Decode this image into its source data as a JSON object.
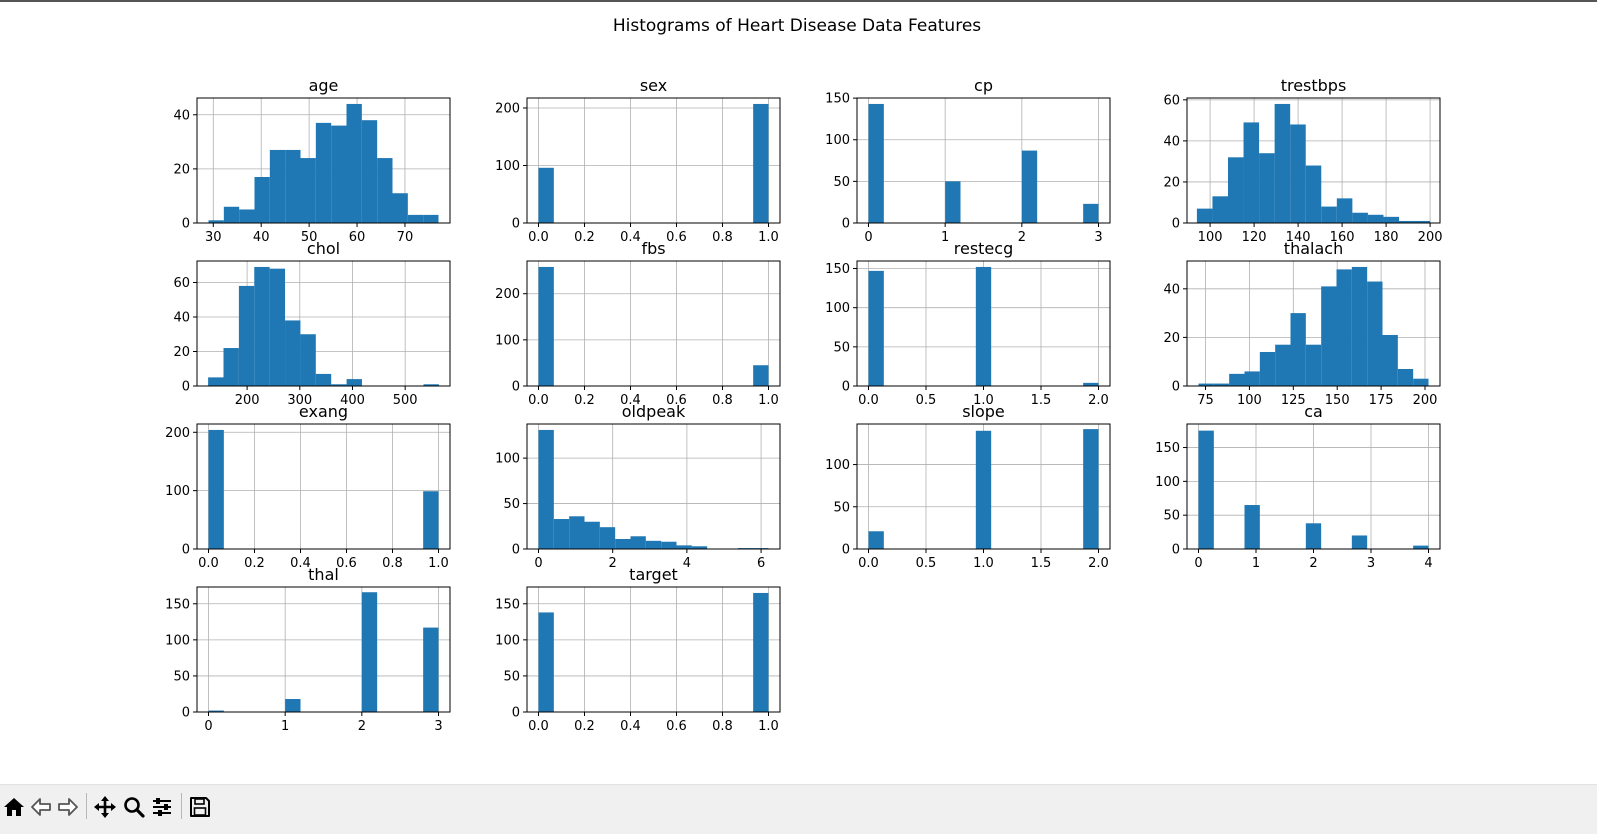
{
  "figure": {
    "suptitle": "Histograms of Heart Disease Data Features"
  },
  "toolbar": {
    "buttons": [
      {
        "name": "home-button",
        "icon": "home-icon"
      },
      {
        "name": "back-button",
        "icon": "arrow-left-icon"
      },
      {
        "name": "forward-button",
        "icon": "arrow-right-icon"
      },
      {
        "name": "pan-button",
        "icon": "move-icon"
      },
      {
        "name": "zoom-button",
        "icon": "search-icon"
      },
      {
        "name": "configure-subplots-button",
        "icon": "sliders-icon"
      },
      {
        "name": "save-button",
        "icon": "save-icon"
      }
    ]
  },
  "colors": {
    "bar": "#1f77b4",
    "grid": "#b0b0b0",
    "axes": "#000000",
    "text": "#000000"
  },
  "chart_data": [
    {
      "type": "bar",
      "title": "age",
      "grid": true,
      "xlim": [
        26.6,
        79.4
      ],
      "ylim": [
        0,
        46.2
      ],
      "xticks": [
        30,
        40,
        50,
        60,
        70
      ],
      "yticks": [
        0,
        20,
        40
      ],
      "bin_edges": [
        29,
        32.2,
        35.4,
        38.6,
        41.8,
        45,
        48.2,
        51.4,
        54.6,
        57.8,
        61,
        64.2,
        67.4,
        70.6,
        73.8,
        77
      ],
      "values": [
        1,
        6,
        5,
        17,
        27,
        27,
        24,
        37,
        36,
        44,
        38,
        24,
        11,
        3,
        3
      ]
    },
    {
      "type": "bar",
      "title": "sex",
      "grid": true,
      "xlim": [
        -0.05,
        1.05
      ],
      "ylim": [
        0,
        217.35
      ],
      "xticks": [
        0.0,
        0.2,
        0.4,
        0.6,
        0.8,
        1.0
      ],
      "yticks": [
        0,
        100,
        200
      ],
      "bin_edges": [
        0,
        0.0667,
        0.1333,
        0.2,
        0.2667,
        0.3333,
        0.4,
        0.4667,
        0.5333,
        0.6,
        0.6667,
        0.7333,
        0.8,
        0.8667,
        0.9333,
        1.0
      ],
      "values": [
        96,
        0,
        0,
        0,
        0,
        0,
        0,
        0,
        0,
        0,
        0,
        0,
        0,
        0,
        207
      ]
    },
    {
      "type": "bar",
      "title": "cp",
      "grid": true,
      "xlim": [
        -0.15,
        3.15
      ],
      "ylim": [
        0,
        150.15
      ],
      "xticks": [
        0,
        1,
        2,
        3
      ],
      "yticks": [
        0,
        50,
        100,
        150
      ],
      "bin_edges": [
        0,
        0.2,
        0.4,
        0.6,
        0.8,
        1.0,
        1.2,
        1.4,
        1.6,
        1.8,
        2.0,
        2.2,
        2.4,
        2.6,
        2.8,
        3.0
      ],
      "values": [
        143,
        0,
        0,
        0,
        0,
        50,
        0,
        0,
        0,
        0,
        87,
        0,
        0,
        0,
        23
      ]
    },
    {
      "type": "bar",
      "title": "trestbps",
      "grid": true,
      "xlim": [
        89.5,
        204.5
      ],
      "ylim": [
        0,
        60.9
      ],
      "xticks": [
        100,
        120,
        140,
        160,
        180,
        200
      ],
      "yticks": [
        0,
        20,
        40,
        60
      ],
      "bin_edges": [
        94,
        101.067,
        108.133,
        115.2,
        122.267,
        129.333,
        136.4,
        143.467,
        150.533,
        157.6,
        164.667,
        171.733,
        178.8,
        185.867,
        192.933,
        200
      ],
      "values": [
        7,
        13,
        32,
        49,
        34,
        58,
        48,
        28,
        8,
        12,
        5,
        4,
        3,
        1,
        1
      ]
    },
    {
      "type": "bar",
      "title": "chol",
      "grid": true,
      "xlim": [
        104.9,
        585.1
      ],
      "ylim": [
        0,
        72.45
      ],
      "xticks": [
        200,
        300,
        400,
        500
      ],
      "yticks": [
        0,
        20,
        40,
        60
      ],
      "bin_edges": [
        126,
        155.2,
        184.4,
        213.6,
        242.8,
        272,
        301.2,
        330.4,
        359.6,
        388.8,
        418,
        447.2,
        476.4,
        505.6,
        534.8,
        564
      ],
      "values": [
        5,
        22,
        58,
        69,
        68,
        38,
        30,
        7,
        1,
        4,
        0,
        0,
        0,
        0,
        1
      ]
    },
    {
      "type": "bar",
      "title": "fbs",
      "grid": true,
      "xlim": [
        -0.05,
        1.05
      ],
      "ylim": [
        0,
        270.9
      ],
      "xticks": [
        0.0,
        0.2,
        0.4,
        0.6,
        0.8,
        1.0
      ],
      "yticks": [
        0,
        100,
        200
      ],
      "bin_edges": [
        0,
        0.0667,
        0.1333,
        0.2,
        0.2667,
        0.3333,
        0.4,
        0.4667,
        0.5333,
        0.6,
        0.6667,
        0.7333,
        0.8,
        0.8667,
        0.9333,
        1.0
      ],
      "values": [
        258,
        0,
        0,
        0,
        0,
        0,
        0,
        0,
        0,
        0,
        0,
        0,
        0,
        0,
        45
      ]
    },
    {
      "type": "bar",
      "title": "restecg",
      "grid": true,
      "xlim": [
        -0.1,
        2.1
      ],
      "ylim": [
        0,
        159.6
      ],
      "xticks": [
        0.0,
        0.5,
        1.0,
        1.5,
        2.0
      ],
      "yticks": [
        0,
        50,
        100,
        150
      ],
      "bin_edges": [
        0,
        0.1333,
        0.2667,
        0.4,
        0.5333,
        0.6667,
        0.8,
        0.9333,
        1.0667,
        1.2,
        1.3333,
        1.4667,
        1.6,
        1.7333,
        1.8667,
        2.0
      ],
      "values": [
        147,
        0,
        0,
        0,
        0,
        0,
        0,
        152,
        0,
        0,
        0,
        0,
        0,
        0,
        4
      ]
    },
    {
      "type": "bar",
      "title": "thalach",
      "grid": true,
      "xlim": [
        64.45,
        208.55
      ],
      "ylim": [
        0,
        51.45
      ],
      "xticks": [
        75,
        100,
        125,
        150,
        175,
        200
      ],
      "yticks": [
        0,
        20,
        40
      ],
      "bin_edges": [
        71,
        79.733,
        88.467,
        97.2,
        105.933,
        114.667,
        123.4,
        132.133,
        140.867,
        149.6,
        158.333,
        167.067,
        175.8,
        184.533,
        193.267,
        202
      ],
      "values": [
        1,
        1,
        5,
        6,
        14,
        17,
        30,
        17,
        41,
        48,
        49,
        43,
        21,
        7,
        3
      ]
    },
    {
      "type": "bar",
      "title": "exang",
      "grid": true,
      "xlim": [
        -0.05,
        1.05
      ],
      "ylim": [
        0,
        214.2
      ],
      "xticks": [
        0.0,
        0.2,
        0.4,
        0.6,
        0.8,
        1.0
      ],
      "yticks": [
        0,
        100,
        200
      ],
      "bin_edges": [
        0,
        0.0667,
        0.1333,
        0.2,
        0.2667,
        0.3333,
        0.4,
        0.4667,
        0.5333,
        0.6,
        0.6667,
        0.7333,
        0.8,
        0.8667,
        0.9333,
        1.0
      ],
      "values": [
        204,
        0,
        0,
        0,
        0,
        0,
        0,
        0,
        0,
        0,
        0,
        0,
        0,
        0,
        99
      ]
    },
    {
      "type": "bar",
      "title": "oldpeak",
      "grid": true,
      "xlim": [
        -0.31,
        6.51
      ],
      "ylim": [
        0,
        137.55
      ],
      "xticks": [
        0,
        2,
        4,
        6
      ],
      "yticks": [
        0,
        50,
        100
      ],
      "bin_edges": [
        0,
        0.4133,
        0.8267,
        1.24,
        1.6533,
        2.0667,
        2.48,
        2.8933,
        3.3067,
        3.72,
        4.1333,
        4.5467,
        4.96,
        5.3733,
        5.7867,
        6.2
      ],
      "values": [
        131,
        33,
        36,
        30,
        24,
        11,
        14,
        9,
        8,
        4,
        3,
        0,
        0,
        1,
        1
      ]
    },
    {
      "type": "bar",
      "title": "slope",
      "grid": true,
      "xlim": [
        -0.1,
        2.1
      ],
      "ylim": [
        0,
        148.05
      ],
      "xticks": [
        0.0,
        0.5,
        1.0,
        1.5,
        2.0
      ],
      "yticks": [
        0,
        50,
        100
      ],
      "bin_edges": [
        0,
        0.1333,
        0.2667,
        0.4,
        0.5333,
        0.6667,
        0.8,
        0.9333,
        1.0667,
        1.2,
        1.3333,
        1.4667,
        1.6,
        1.7333,
        1.8667,
        2.0
      ],
      "values": [
        21,
        0,
        0,
        0,
        0,
        0,
        0,
        140,
        0,
        0,
        0,
        0,
        0,
        0,
        142
      ]
    },
    {
      "type": "bar",
      "title": "ca",
      "grid": true,
      "xlim": [
        -0.2,
        4.2
      ],
      "ylim": [
        0,
        184.8
      ],
      "xticks": [
        0,
        1,
        2,
        3,
        4
      ],
      "yticks": [
        0,
        50,
        100,
        150
      ],
      "bin_edges": [
        0,
        0.2667,
        0.5333,
        0.8,
        1.0667,
        1.3333,
        1.6,
        1.8667,
        2.1333,
        2.4,
        2.6667,
        2.9333,
        3.2,
        3.4667,
        3.7333,
        4.0
      ],
      "values": [
        175,
        0,
        0,
        65,
        0,
        0,
        0,
        38,
        0,
        0,
        20,
        0,
        0,
        0,
        5
      ]
    },
    {
      "type": "bar",
      "title": "thal",
      "grid": true,
      "xlim": [
        -0.15,
        3.15
      ],
      "ylim": [
        0,
        173.25
      ],
      "xticks": [
        0,
        1,
        2,
        3
      ],
      "yticks": [
        0,
        50,
        100,
        150
      ],
      "bin_edges": [
        0,
        0.2,
        0.4,
        0.6,
        0.8,
        1.0,
        1.2,
        1.4,
        1.6,
        1.8,
        2.0,
        2.2,
        2.4,
        2.6,
        2.8,
        3.0
      ],
      "values": [
        2,
        0,
        0,
        0,
        0,
        18,
        0,
        0,
        0,
        0,
        166,
        0,
        0,
        0,
        117
      ]
    },
    {
      "type": "bar",
      "title": "target",
      "grid": true,
      "xlim": [
        -0.05,
        1.05
      ],
      "ylim": [
        0,
        173.25
      ],
      "xticks": [
        0.0,
        0.2,
        0.4,
        0.6,
        0.8,
        1.0
      ],
      "yticks": [
        0,
        50,
        100,
        150
      ],
      "bin_edges": [
        0,
        0.0667,
        0.1333,
        0.2,
        0.2667,
        0.3333,
        0.4,
        0.4667,
        0.5333,
        0.6,
        0.6667,
        0.7333,
        0.8,
        0.8667,
        0.9333,
        1.0
      ],
      "values": [
        138,
        0,
        0,
        0,
        0,
        0,
        0,
        0,
        0,
        0,
        0,
        0,
        0,
        0,
        165
      ]
    }
  ]
}
